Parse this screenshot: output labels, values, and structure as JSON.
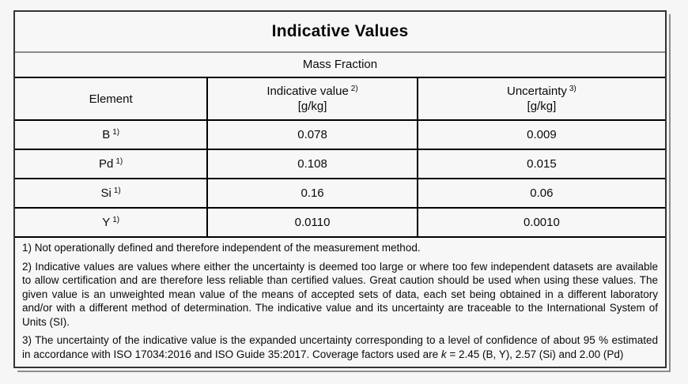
{
  "colors": {
    "page_background": "#f6f6f6",
    "table_border": "#333333",
    "shadow": "#8d8d8d",
    "title_separator": "#8a8a8a"
  },
  "table": {
    "title": "Indicative Values",
    "subtitle": "Mass Fraction",
    "columns": {
      "element": "Element",
      "indicative": "Indicative value",
      "indicative_sup": "2)",
      "indicative_unit": "[g/kg]",
      "uncertainty": "Uncertainty",
      "uncertainty_sup": "3)",
      "uncertainty_unit": "[g/kg]"
    },
    "rows": [
      {
        "element": "B",
        "sup": "1)",
        "value": "0.078",
        "uncertainty": "0.009"
      },
      {
        "element": "Pd",
        "sup": "1)",
        "value": "0.108",
        "uncertainty": "0.015"
      },
      {
        "element": "Si",
        "sup": "1)",
        "value": "0.16",
        "uncertainty": "0.06"
      },
      {
        "element": "Y",
        "sup": "1)",
        "value": "0.0110",
        "uncertainty": "0.0010"
      }
    ],
    "footnotes": {
      "note1": "1) Not operationally defined and therefore independent of the measurement method.",
      "note2": "2) Indicative values are values where either the uncertainty is deemed too large or where too few independent datasets are available to allow certification and are therefore less reliable than certified values. Great caution should be used when using these values. The given value is an unweighted mean value of the means of accepted sets of data, each set being obtained in a different laboratory and/or with a different method of determination. The indicative value and its uncertainty are traceable to the International System of Units (SI).",
      "note3_pre": "3) The uncertainty of the indicative value is the expanded uncertainty corresponding to a level of confidence of about 95 % estimated in accordance with ISO 17034:2016 and ISO Guide 35:2017. Coverage factors used are ",
      "note3_k": "k",
      "note3_post": " = 2.45 (B, Y), 2.57 (Si) and 2.00 (Pd)"
    }
  }
}
